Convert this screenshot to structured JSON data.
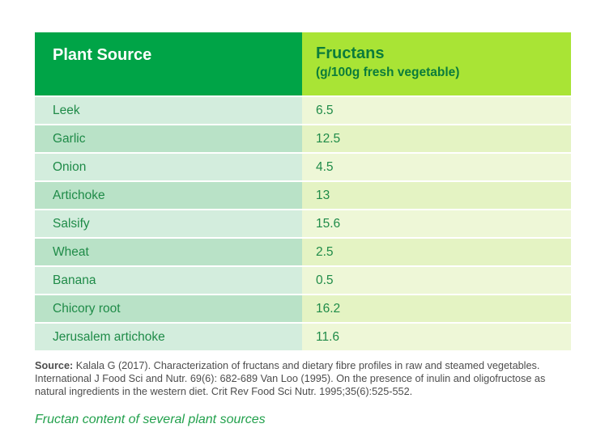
{
  "header": {
    "col1": "Plant Source",
    "col2_title": "Fructans",
    "col2_subtitle": "(g/100g fresh vegetable)"
  },
  "table": {
    "rows": [
      {
        "source": "Leek",
        "value": "6.5"
      },
      {
        "source": "Garlic",
        "value": "12.5"
      },
      {
        "source": "Onion",
        "value": "4.5"
      },
      {
        "source": "Artichoke",
        "value": "13"
      },
      {
        "source": "Salsify",
        "value": "15.6"
      },
      {
        "source": "Wheat",
        "value": "2.5"
      },
      {
        "source": "Banana",
        "value": "0.5"
      },
      {
        "source": "Chicory root",
        "value": "16.2"
      },
      {
        "source": "Jerusalem artichoke",
        "value": "11.6"
      }
    ]
  },
  "source_note": {
    "label": "Source:",
    "text": " Kalala G (2017). Characterization of fructans and dietary fibre profiles in raw and steamed vegetables. International J Food Sci and Nutr. 69(6): 682-689 Van Loo (1995). On the presence of inulin and oligofructose as natural ingredients in the western diet. Crit Rev Food Sci Nutr. 1995;35(6):525-552."
  },
  "caption": "Fructan content of several plant sources",
  "colors": {
    "header_left_bg": "#00A447",
    "header_right_bg": "#A9E435",
    "header_right_text": "#0B7C3B",
    "row_text": "#1F8B48",
    "row_left_odd": "#D3EDDD",
    "row_left_even": "#B9E2C7",
    "row_right_odd": "#EEF7D7",
    "row_right_even": "#E4F3C3",
    "source_text": "#4D4D4D",
    "caption_text": "#23A14D"
  },
  "chart_data": {
    "type": "table",
    "title": "Fructan content of several plant sources",
    "columns": [
      "Plant Source",
      "Fructans (g/100g fresh vegetable)"
    ],
    "categories": [
      "Leek",
      "Garlic",
      "Onion",
      "Artichoke",
      "Salsify",
      "Wheat",
      "Banana",
      "Chicory root",
      "Jerusalem artichoke"
    ],
    "values": [
      6.5,
      12.5,
      4.5,
      13,
      15.6,
      2.5,
      0.5,
      16.2,
      11.6
    ]
  }
}
